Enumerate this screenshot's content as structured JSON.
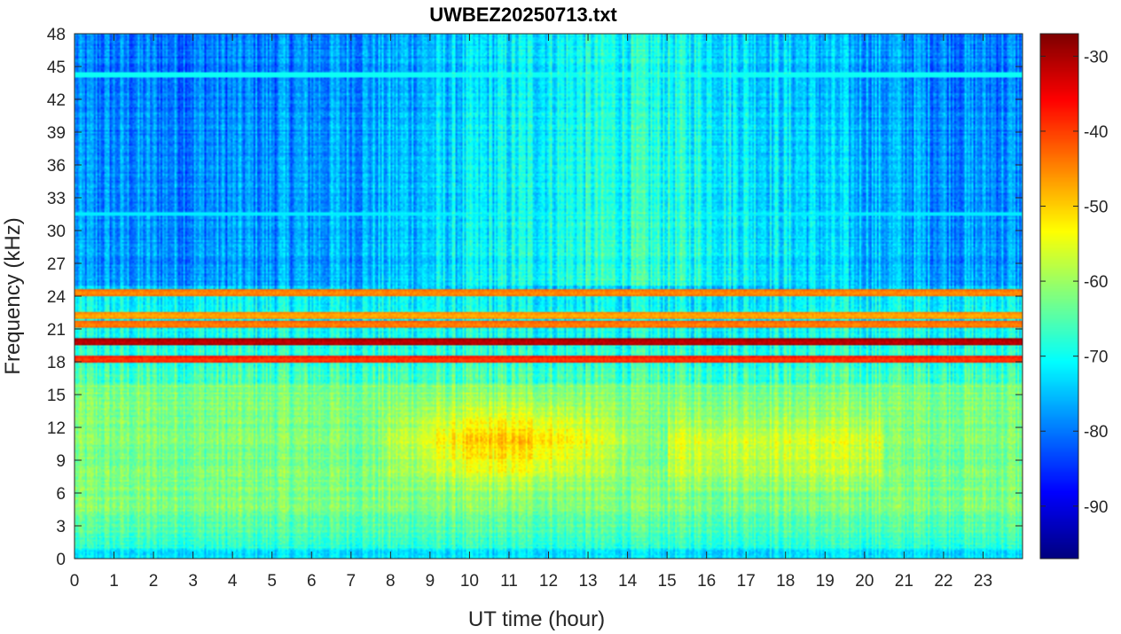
{
  "chart_data": {
    "type": "heatmap",
    "title": "UWBEZ20250713.txt",
    "xlabel": "UT time (hour)",
    "ylabel": "Frequency (kHz)",
    "xlim": [
      0,
      24
    ],
    "ylim": [
      0,
      48
    ],
    "x_ticks": [
      0,
      1,
      2,
      3,
      4,
      5,
      6,
      7,
      8,
      9,
      10,
      11,
      12,
      13,
      14,
      15,
      16,
      17,
      18,
      19,
      20,
      21,
      22,
      23
    ],
    "y_ticks": [
      0,
      3,
      6,
      9,
      12,
      15,
      18,
      21,
      24,
      27,
      30,
      33,
      36,
      39,
      42,
      45,
      48
    ],
    "colorbar": {
      "colormap": "jet",
      "clim": [
        -97,
        -27
      ],
      "ticks": [
        -30,
        -40,
        -50,
        -60,
        -70,
        -80,
        -90
      ]
    },
    "features": {
      "background_low_freq_dB": -60,
      "background_high_freq_dB": -80,
      "strong_bands": [
        {
          "freq_khz": 19.8,
          "level_db": -32
        },
        {
          "freq_khz": 18.2,
          "level_db": -40
        },
        {
          "freq_khz": 21.4,
          "level_db": -45
        },
        {
          "freq_khz": 22.2,
          "level_db": -48
        },
        {
          "freq_khz": 24.3,
          "level_db": -46
        }
      ],
      "hotspot": {
        "t_start_h": 8.3,
        "t_end_h": 13.6,
        "f_low_khz": 6,
        "f_high_khz": 15,
        "level_db": -48
      }
    }
  }
}
